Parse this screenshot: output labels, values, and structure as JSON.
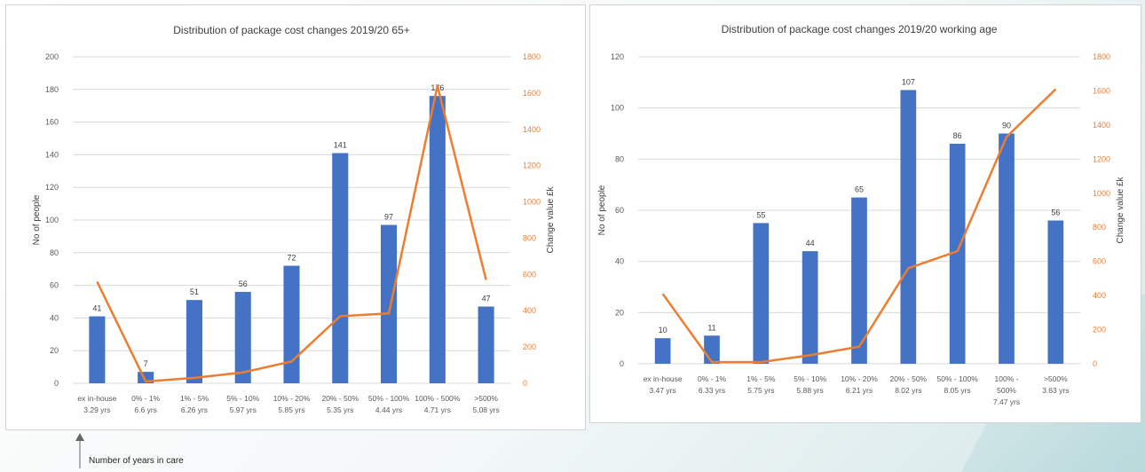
{
  "colors": {
    "bar": "#4472C4",
    "line": "#ED7D31",
    "axis_text": "#595959",
    "grid": "#d9d9d9"
  },
  "chart_data": [
    {
      "type": "bar",
      "title": "Distribution of package cost changes 2019/20 65+",
      "ylabel": "No of people",
      "y2label": "Change value £k",
      "ylim": [
        0,
        200
      ],
      "y2lim": [
        0,
        1800
      ],
      "yticks": [
        "0",
        "20",
        "40",
        "60",
        "80",
        "100",
        "120",
        "140",
        "160",
        "180",
        "200"
      ],
      "y2ticks": [
        "0",
        "200",
        "400",
        "600",
        "800",
        "1000",
        "1200",
        "1400",
        "1600",
        "1800"
      ],
      "categories": [
        [
          "ex in-house",
          "3.29 yrs"
        ],
        [
          "0% - 1%",
          "6.6 yrs"
        ],
        [
          "1% - 5%",
          "6.26 yrs"
        ],
        [
          "5% - 10%",
          "5.97 yrs"
        ],
        [
          "10% - 20%",
          "5.85 yrs"
        ],
        [
          "20% - 50%",
          "5.35 yrs"
        ],
        [
          "50% - 100%",
          "4.44 yrs"
        ],
        [
          "100% - 500%",
          "4.71 yrs"
        ],
        [
          ">500%",
          "5.08 yrs"
        ]
      ],
      "series": [
        {
          "kind": "bar",
          "axis": "left",
          "values": [
            41,
            7,
            51,
            56,
            72,
            141,
            97,
            176,
            47
          ]
        },
        {
          "kind": "line",
          "axis": "right",
          "values": [
            560,
            10,
            30,
            60,
            120,
            370,
            385,
            1640,
            570
          ]
        }
      ],
      "grid": true
    },
    {
      "type": "bar",
      "title": "Distribution of package cost changes 2019/20 working age",
      "ylabel": "No of people",
      "y2label": "Change value £k",
      "ylim": [
        0,
        120
      ],
      "y2lim": [
        0,
        1800
      ],
      "yticks": [
        "0",
        "20",
        "40",
        "60",
        "80",
        "100",
        "120"
      ],
      "y2ticks": [
        "0",
        "200",
        "400",
        "600",
        "800",
        "1000",
        "1200",
        "1400",
        "1600",
        "1800"
      ],
      "categories": [
        [
          "ex in-house",
          "3.47 yrs"
        ],
        [
          "0% - 1%",
          "6.33 yrs"
        ],
        [
          "1% - 5%",
          "5.75 yrs"
        ],
        [
          "5% - 10%",
          "5.88 yrs"
        ],
        [
          "10% - 20%",
          "6.21 yrs"
        ],
        [
          "20% - 50%",
          "8.02 yrs"
        ],
        [
          "50% - 100%",
          "8.05 yrs"
        ],
        [
          "100% -",
          "500%",
          "7.47 yrs"
        ],
        [
          ">500%",
          "3.63 yrs"
        ]
      ],
      "series": [
        {
          "kind": "bar",
          "axis": "left",
          "values": [
            10,
            11,
            55,
            44,
            65,
            107,
            86,
            90,
            56
          ]
        },
        {
          "kind": "line",
          "axis": "right",
          "values": [
            410,
            10,
            10,
            50,
            100,
            560,
            660,
            1330,
            1610
          ]
        }
      ],
      "grid": true
    }
  ],
  "footnote": {
    "label": "Number of years in care"
  }
}
